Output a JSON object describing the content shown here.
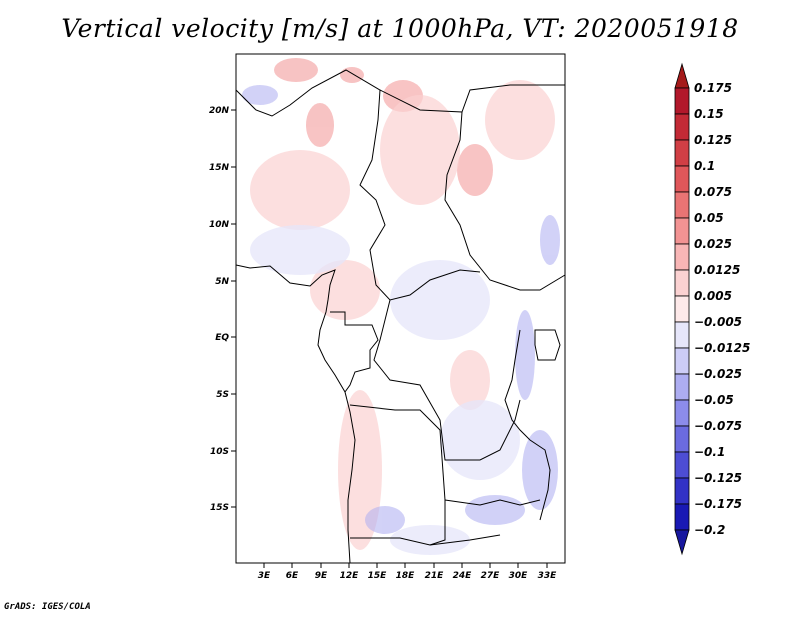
{
  "title": "Vertical velocity [m/s] at 1000hPa, VT: 2020051918",
  "footer": "GrADS: IGES/COLA",
  "map": {
    "lat_labels": [
      "20N",
      "15N",
      "10N",
      "5N",
      "EQ",
      "5S",
      "10S",
      "15S"
    ],
    "lon_labels": [
      "3E",
      "6E",
      "9E",
      "12E",
      "15E",
      "18E",
      "21E",
      "24E",
      "27E",
      "30E",
      "33E"
    ]
  },
  "colorbar": {
    "levels": [
      {
        "label": "0.175",
        "color": "#b2182b"
      },
      {
        "label": "0.15",
        "color": "#c32a36"
      },
      {
        "label": "0.125",
        "color": "#d13f45"
      },
      {
        "label": "0.1",
        "color": "#e0575a"
      },
      {
        "label": "0.075",
        "color": "#e97474"
      },
      {
        "label": "0.05",
        "color": "#f29393"
      },
      {
        "label": "0.025",
        "color": "#f8b6b6"
      },
      {
        "label": "0.0125",
        "color": "#fbd2d2"
      },
      {
        "label": "0.005",
        "color": "#fde9e9"
      },
      {
        "label": "-0.005",
        "color": "#ffffff"
      },
      {
        "label": "-0.0125",
        "color": "#e6e6fa"
      },
      {
        "label": "-0.025",
        "color": "#cdcdf7"
      },
      {
        "label": "-0.05",
        "color": "#adadf1"
      },
      {
        "label": "-0.075",
        "color": "#8c8ceb"
      },
      {
        "label": "-0.1",
        "color": "#6b6be0"
      },
      {
        "label": "-0.125",
        "color": "#4d4dd4"
      },
      {
        "label": "-0.175",
        "color": "#3232c6"
      },
      {
        "label": "-0.2",
        "color": "#1919b4"
      }
    ],
    "top_color": "#a51a1a",
    "bottom_color": "#18189f"
  }
}
